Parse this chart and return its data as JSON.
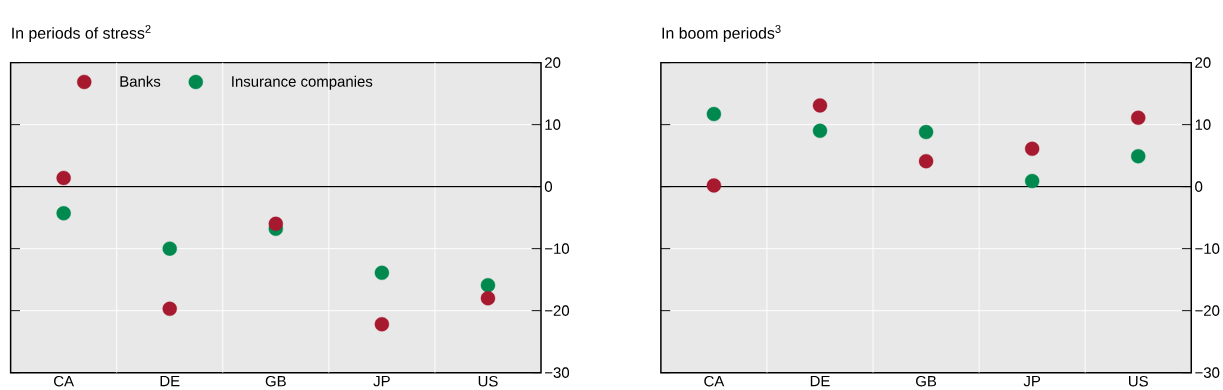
{
  "chart_data": [
    {
      "type": "scatter",
      "title": "In periods of stress$^{2}$",
      "categories": [
        "CA",
        "DE",
        "GB",
        "JP",
        "US"
      ],
      "series": [
        {
          "name": "Banks",
          "color": "#a6192e",
          "values": [
            1.4,
            -19.7,
            -6.0,
            -22.2,
            -18.0
          ]
        },
        {
          "name": "Insurance companies",
          "color": "#00894f",
          "values": [
            -4.3,
            -10.0,
            -6.8,
            -13.9,
            -15.9
          ]
        }
      ],
      "ylim": [
        -30,
        20
      ],
      "yticks": [
        {
          "value": -30,
          "label": "−30"
        },
        {
          "value": -20,
          "label": "−20"
        },
        {
          "value": -10,
          "label": "−10"
        },
        0,
        10,
        20
      ],
      "ref_lines": [
        {
          "axis": "y",
          "value": 0,
          "color": "#000000"
        }
      ],
      "grid": true,
      "legend": "top left",
      "marker": "circle"
    },
    {
      "type": "scatter",
      "title": "In boom periods$^{3}$",
      "categories": [
        "CA",
        "DE",
        "GB",
        "JP",
        "US"
      ],
      "series": [
        {
          "color": "#a6192e",
          "values": [
            0.2,
            13.1,
            4.1,
            6.1,
            11.1
          ]
        },
        {
          "color": "#00894f",
          "values": [
            11.7,
            9.0,
            8.8,
            0.9,
            4.9
          ]
        }
      ],
      "ylim": [
        -30,
        20
      ],
      "yticks": [
        {
          "value": -30,
          "label": "−30"
        },
        {
          "value": -20,
          "label": "−20"
        },
        {
          "value": -10,
          "label": "−10"
        },
        0,
        10,
        20
      ],
      "ref_lines": [
        {
          "axis": "y",
          "value": 0,
          "color": "#000000"
        }
      ],
      "grid": true,
      "marker": "circle"
    }
  ]
}
